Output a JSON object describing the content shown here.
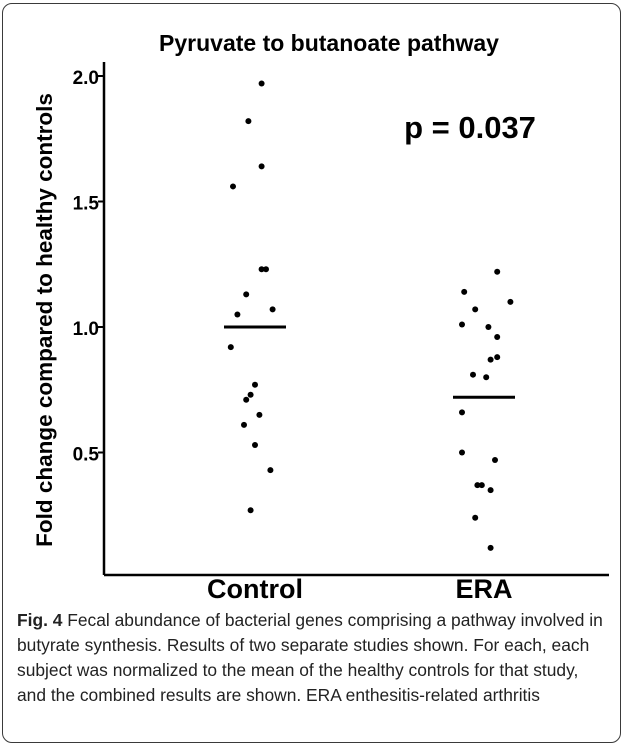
{
  "chart_data": {
    "type": "scatter",
    "title": "Pyruvate to butanoate pathway",
    "ylabel": "Fold change compared to healthy controls",
    "xlabel": "",
    "categories": [
      "Control",
      "ERA"
    ],
    "ylim": [
      0.1,
      2.07
    ],
    "yticks": [
      0.5,
      1.0,
      1.5,
      2.0
    ],
    "ytick_labels": [
      "0.5",
      "1.0",
      "1.5",
      "2.0"
    ],
    "annotation": "p = 0.037",
    "grid": false,
    "series": [
      {
        "category": "Control",
        "mean": 1.0,
        "values": [
          1.97,
          1.82,
          1.64,
          1.56,
          1.23,
          1.23,
          1.13,
          1.07,
          1.05,
          0.92,
          0.77,
          0.73,
          0.71,
          0.65,
          0.61,
          0.53,
          0.43,
          0.27
        ],
        "jitter": [
          0.3,
          -0.3,
          0.3,
          -1.0,
          0.5,
          0.3,
          -0.4,
          0.8,
          -0.8,
          -1.1,
          0.0,
          -0.2,
          -0.4,
          0.2,
          -0.5,
          0.0,
          0.7,
          -0.2
        ]
      },
      {
        "category": "ERA",
        "mean": 0.72,
        "values": [
          1.22,
          1.14,
          1.1,
          1.07,
          1.01,
          1.0,
          0.96,
          0.88,
          0.87,
          0.81,
          0.8,
          0.66,
          0.5,
          0.47,
          0.37,
          0.37,
          0.35,
          0.24,
          0.12
        ],
        "jitter": [
          0.6,
          -0.9,
          1.2,
          -0.4,
          -1.0,
          0.2,
          0.6,
          0.6,
          0.3,
          -0.5,
          0.1,
          -1.0,
          -1.0,
          0.5,
          -0.3,
          -0.1,
          0.3,
          -0.4,
          0.3
        ]
      }
    ]
  },
  "caption": {
    "label": "Fig. 4",
    "text": " Fecal abundance of bacterial genes comprising a pathway involved in butyrate synthesis. Results of two separate studies shown. For each, each subject was normalized to the mean of the healthy controls for that study, and the combined results are shown. ERA enthesitis-related arthritis"
  },
  "colors": {
    "points": "#000000",
    "axis": "#000000",
    "frame": "#3a3a3a"
  }
}
